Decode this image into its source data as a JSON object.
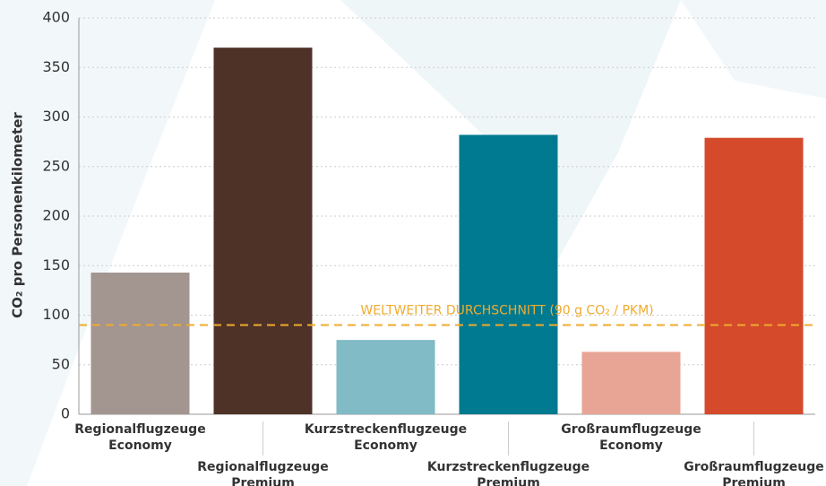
{
  "chart_data": {
    "type": "bar",
    "y_label": "CO₂ pro Personenkilometer",
    "categories": [
      [
        "Regionalflugzeuge",
        "Economy"
      ],
      [
        "Regionalflugzeuge",
        "Premium"
      ],
      [
        "Kurzstreckenflugzeuge",
        "Economy"
      ],
      [
        "Kurzstreckenflugzeuge",
        "Premium"
      ],
      [
        "Großraumflugzeuge",
        "Economy"
      ],
      [
        "Großraumflugzeuge",
        "Premium"
      ]
    ],
    "values": [
      143,
      370,
      75,
      282,
      63,
      279
    ],
    "colors": [
      "#a39590",
      "#4e3228",
      "#80bbc6",
      "#007a90",
      "#e8a596",
      "#d44a2a"
    ],
    "reference_line": {
      "value": 90,
      "label": "WELTWEITER DURCHSCHNITT (90 g CO₂ / PKM)",
      "color": "#f0ab2e"
    },
    "ylim": [
      0,
      400
    ],
    "yticks": [
      0,
      50,
      100,
      150,
      200,
      250,
      300,
      350,
      400
    ],
    "grid": true
  }
}
